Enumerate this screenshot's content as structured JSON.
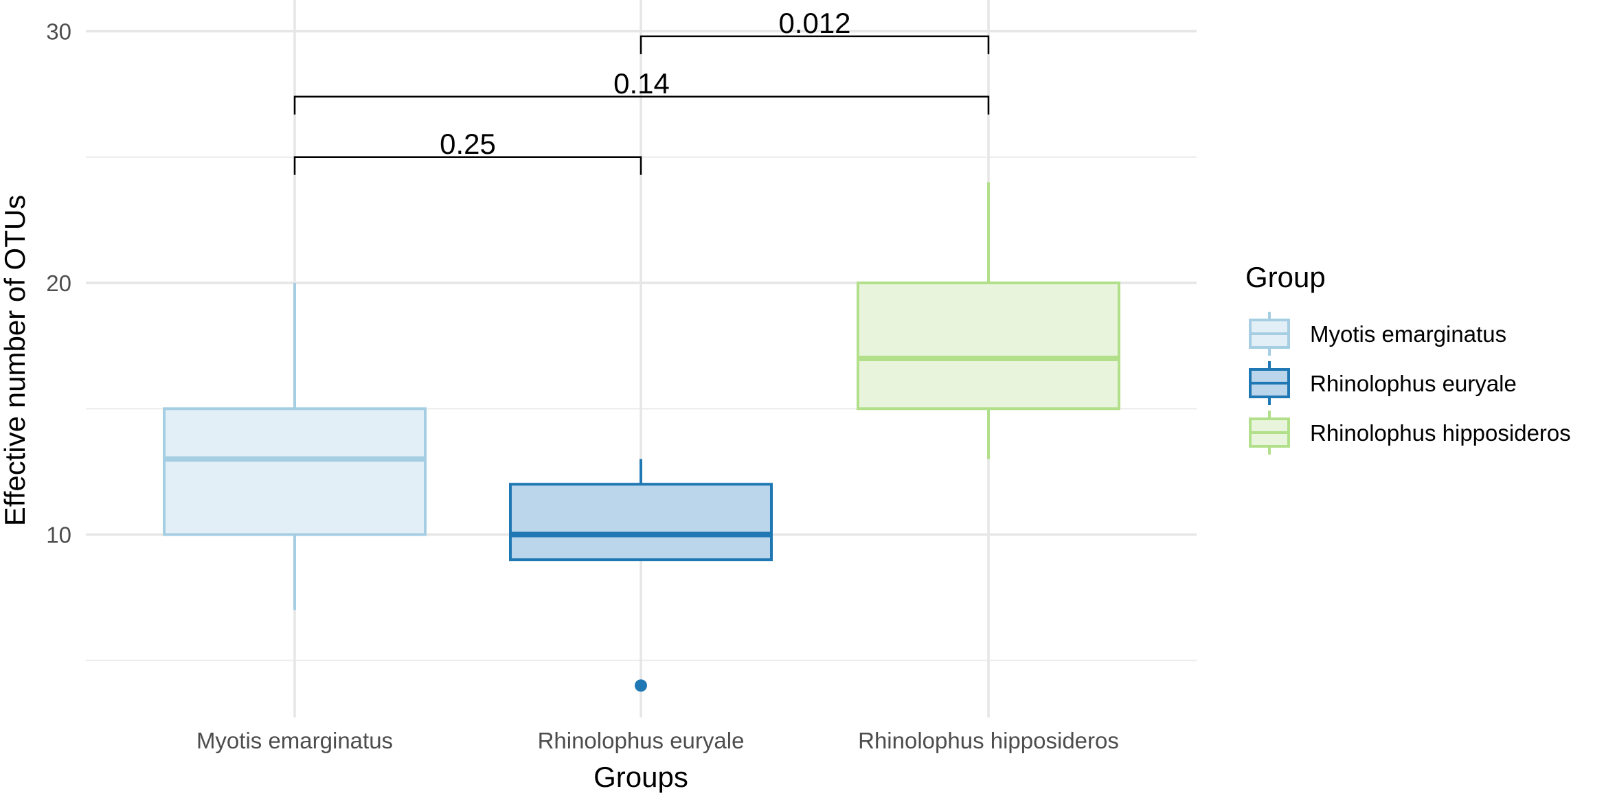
{
  "chart_data": {
    "type": "box",
    "xlabel": "Groups",
    "ylabel": "Effective number of OTUs",
    "ylim": [
      3,
      31
    ],
    "yticks": [
      10,
      20,
      30
    ],
    "y_minor_gridlines": [
      5,
      15,
      25
    ],
    "grid": true,
    "legend": {
      "title": "Group",
      "placement": "right",
      "entries": [
        "Myotis emarginatus",
        "Rhinolophus euryale",
        "Rhinolophus hipposideros"
      ]
    },
    "categories": [
      "Myotis emarginatus",
      "Rhinolophus euryale",
      "Rhinolophus hipposideros"
    ],
    "series": [
      {
        "name": "Myotis emarginatus",
        "color": "#a6cee3",
        "fill": "#e3eff7",
        "whisker_low": 7,
        "q1": 10,
        "median": 13,
        "q3": 15,
        "whisker_high": 20,
        "outliers": []
      },
      {
        "name": "Rhinolophus euryale",
        "color": "#1f78b4",
        "fill": "#bbd5ea",
        "whisker_low": 9,
        "q1": 9,
        "median": 10,
        "q3": 12,
        "whisker_high": 13,
        "outliers": [
          4
        ]
      },
      {
        "name": "Rhinolophus hipposideros",
        "color": "#b2df8a",
        "fill": "#e8f5dc",
        "whisker_low": 13,
        "q1": 15,
        "median": 17,
        "q3": 20,
        "whisker_high": 24,
        "outliers": []
      }
    ],
    "comparisons": [
      {
        "groups": [
          0,
          1
        ],
        "label": "0.25",
        "y": 25
      },
      {
        "groups": [
          0,
          2
        ],
        "label": "0.14",
        "y": 27.4
      },
      {
        "groups": [
          1,
          2
        ],
        "label": "0.012",
        "y": 29.8
      }
    ]
  }
}
